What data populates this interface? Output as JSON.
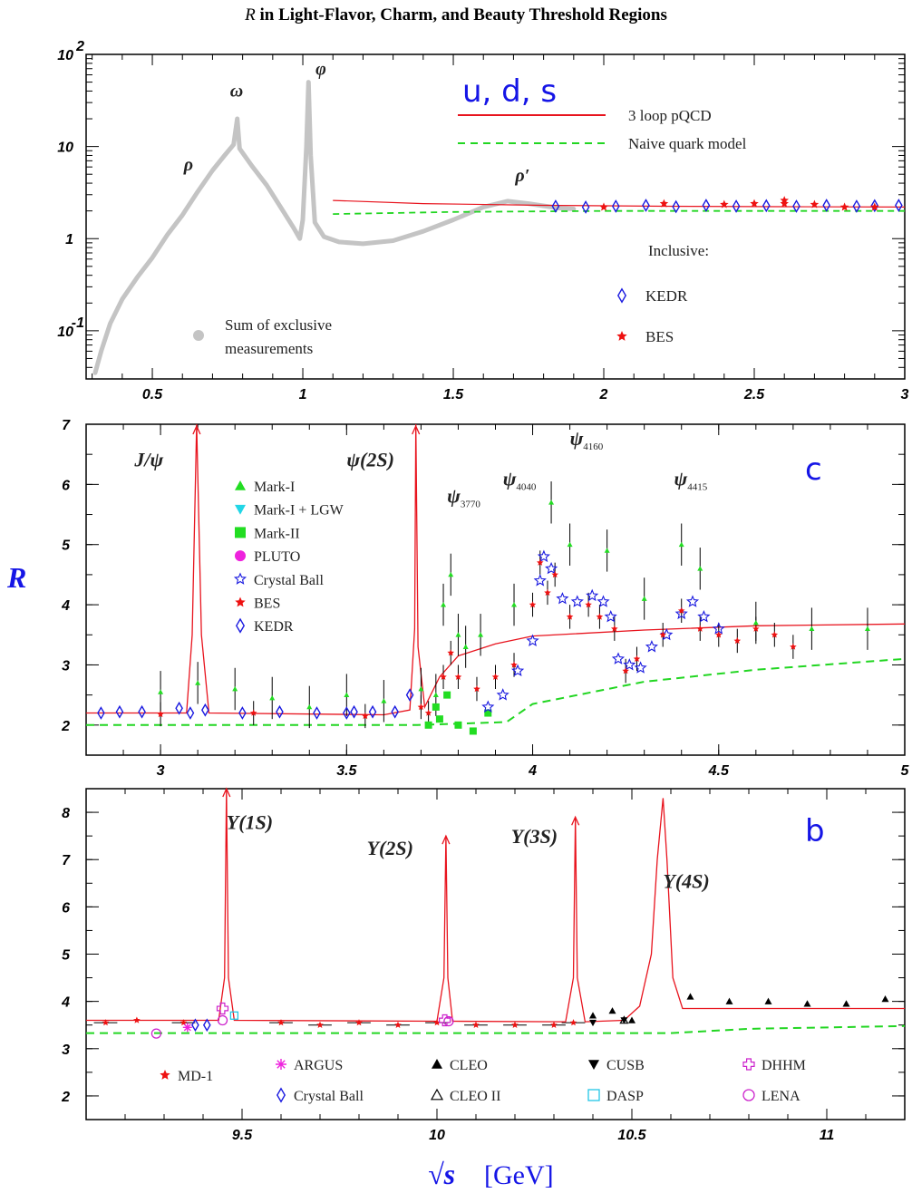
{
  "title_prefix": "R",
  "title_rest": " in Light-Flavor, Charm, and Beauty Threshold Regions",
  "y_axis_label": "R",
  "x_axis_label_sym": "√s",
  "x_axis_label_unit": "[GeV]",
  "colors": {
    "theory": "#e8141e",
    "naive": "#22d622",
    "region_label": "#1515e6",
    "exclusive": "#c4c4c4",
    "kedr": "#1a1ae0",
    "bes": "#ee1111"
  },
  "chart_data": [
    {
      "type": "scatter",
      "region_label": "u, d, s",
      "scale": "log",
      "xlim": [
        0.28,
        3.0
      ],
      "ylim": [
        0.03,
        100
      ],
      "x_ticks": [
        "0.5",
        "1",
        "1.5",
        "2",
        "2.5",
        "3"
      ],
      "x_tick_values": [
        0.5,
        1,
        1.5,
        2,
        2.5,
        3
      ],
      "y_ticks": [
        {
          "value": 0.1,
          "base": "10",
          "exp": "-1"
        },
        {
          "value": 1,
          "base": "1",
          "exp": ""
        },
        {
          "value": 10,
          "base": "10",
          "exp": ""
        },
        {
          "value": 100,
          "base": "10",
          "exp": "2"
        }
      ],
      "legend": {
        "theory": "3 loop pQCD",
        "naive": "Naive quark model",
        "inclusive_heading": "Inclusive:",
        "kedr": "KEDR",
        "bes": "BES",
        "exclusive_line1": "Sum of exclusive",
        "exclusive_line2": "measurements"
      },
      "resonances": [
        {
          "label": "ρ",
          "x": 0.62,
          "y": 5.5
        },
        {
          "label": "ω",
          "x": 0.78,
          "y": 35
        },
        {
          "label": "φ",
          "x": 1.06,
          "y": 60
        },
        {
          "label": "ρ′",
          "x": 1.73,
          "y": 4.2
        }
      ],
      "exclusive_curve": [
        [
          0.31,
          0.035
        ],
        [
          0.33,
          0.06
        ],
        [
          0.36,
          0.12
        ],
        [
          0.4,
          0.22
        ],
        [
          0.45,
          0.38
        ],
        [
          0.5,
          0.62
        ],
        [
          0.55,
          1.1
        ],
        [
          0.6,
          1.8
        ],
        [
          0.65,
          3.2
        ],
        [
          0.7,
          5.5
        ],
        [
          0.74,
          8.0
        ],
        [
          0.77,
          10.5
        ],
        [
          0.782,
          20
        ],
        [
          0.79,
          9.5
        ],
        [
          0.83,
          6.2
        ],
        [
          0.88,
          3.8
        ],
        [
          0.93,
          2.1
        ],
        [
          0.97,
          1.3
        ],
        [
          0.99,
          1.0
        ],
        [
          1.0,
          1.6
        ],
        [
          1.012,
          10
        ],
        [
          1.019,
          50
        ],
        [
          1.026,
          8
        ],
        [
          1.04,
          1.5
        ],
        [
          1.07,
          1.05
        ],
        [
          1.12,
          0.92
        ],
        [
          1.2,
          0.88
        ],
        [
          1.3,
          0.95
        ],
        [
          1.4,
          1.2
        ],
        [
          1.5,
          1.6
        ],
        [
          1.6,
          2.2
        ],
        [
          1.68,
          2.55
        ],
        [
          1.75,
          2.4
        ],
        [
          1.85,
          2.15
        ],
        [
          1.9,
          2.1
        ]
      ],
      "pqcd": [
        [
          1.1,
          2.6
        ],
        [
          1.4,
          2.4
        ],
        [
          1.8,
          2.3
        ],
        [
          2.2,
          2.25
        ],
        [
          2.6,
          2.22
        ],
        [
          3.0,
          2.2
        ]
      ],
      "naive": [
        [
          1.1,
          1.85
        ],
        [
          1.5,
          1.95
        ],
        [
          2.0,
          2.0
        ],
        [
          2.5,
          2.0
        ],
        [
          3.0,
          2.0
        ]
      ],
      "kedr_points": [
        [
          1.84,
          2.25
        ],
        [
          1.94,
          2.2
        ],
        [
          2.04,
          2.25
        ],
        [
          2.14,
          2.3
        ],
        [
          2.24,
          2.22
        ],
        [
          2.34,
          2.3
        ],
        [
          2.44,
          2.25
        ],
        [
          2.54,
          2.28
        ],
        [
          2.64,
          2.25
        ],
        [
          2.74,
          2.3
        ],
        [
          2.84,
          2.25
        ],
        [
          2.9,
          2.28
        ],
        [
          2.98,
          2.3
        ]
      ],
      "bes_points": [
        [
          2.0,
          2.2
        ],
        [
          2.2,
          2.4
        ],
        [
          2.4,
          2.35
        ],
        [
          2.5,
          2.4
        ],
        [
          2.6,
          2.6
        ],
        [
          2.6,
          2.4
        ],
        [
          2.7,
          2.35
        ],
        [
          2.8,
          2.2
        ],
        [
          2.9,
          2.2
        ]
      ]
    },
    {
      "type": "scatter",
      "region_label": "c",
      "xlim": [
        2.8,
        5.0
      ],
      "ylim": [
        1.5,
        7.0
      ],
      "x_ticks": [
        "3",
        "3.5",
        "4",
        "4.5",
        "5"
      ],
      "x_tick_values": [
        3,
        3.5,
        4,
        4.5,
        5
      ],
      "y_ticks": [
        "2",
        "3",
        "4",
        "5",
        "6",
        "7"
      ],
      "y_tick_values": [
        2,
        3,
        4,
        5,
        6,
        7
      ],
      "legend": [
        {
          "label": "Mark-I",
          "marker": "triangle-up",
          "color": "#22dd22"
        },
        {
          "label": "Mark-I + LGW",
          "marker": "triangle-down",
          "color": "#22d6e6"
        },
        {
          "label": "Mark-II",
          "marker": "square",
          "color": "#22dd22"
        },
        {
          "label": "PLUTO",
          "marker": "circle",
          "color": "#ee22dd"
        },
        {
          "label": "Crystal Ball",
          "marker": "star-open",
          "color": "#1a1ae0"
        },
        {
          "label": "BES",
          "marker": "star",
          "color": "#ee1111"
        },
        {
          "label": "KEDR",
          "marker": "diamond-open",
          "color": "#1a1ae0"
        }
      ],
      "resonances": [
        {
          "label": "J/ψ",
          "sub": "",
          "x": 2.93,
          "y": 6.3
        },
        {
          "label": "ψ(2S)",
          "sub": "",
          "x": 3.5,
          "y": 6.3
        },
        {
          "label": "ψ",
          "sub": "3770",
          "x": 3.77,
          "y": 5.7
        },
        {
          "label": "ψ",
          "sub": "4040",
          "x": 3.92,
          "y": 5.98
        },
        {
          "label": "ψ",
          "sub": "4160",
          "x": 4.1,
          "y": 6.65
        },
        {
          "label": "ψ",
          "sub": "4415",
          "x": 4.38,
          "y": 5.98
        }
      ],
      "pqcd": [
        [
          2.8,
          2.2
        ],
        [
          3.0,
          2.2
        ],
        [
          3.07,
          2.2
        ],
        [
          3.085,
          3.5
        ],
        [
          3.097,
          7.0
        ],
        [
          3.11,
          3.5
        ],
        [
          3.13,
          2.2
        ],
        [
          3.6,
          2.17
        ],
        [
          3.67,
          2.25
        ],
        [
          3.683,
          3.6
        ],
        [
          3.686,
          7.0
        ],
        [
          3.692,
          3.3
        ],
        [
          3.71,
          2.3
        ],
        [
          3.75,
          2.8
        ],
        [
          3.8,
          3.15
        ],
        [
          3.9,
          3.35
        ],
        [
          4.0,
          3.48
        ],
        [
          4.3,
          3.58
        ],
        [
          4.6,
          3.65
        ],
        [
          5.0,
          3.68
        ]
      ],
      "naive": [
        [
          2.8,
          2.0
        ],
        [
          3.69,
          2.0
        ],
        [
          3.93,
          2.05
        ],
        [
          4.0,
          2.35
        ],
        [
          4.3,
          2.72
        ],
        [
          4.6,
          2.92
        ],
        [
          5.0,
          3.1
        ]
      ],
      "kedr_points": [
        [
          2.84,
          2.2
        ],
        [
          2.89,
          2.22
        ],
        [
          2.95,
          2.22
        ],
        [
          3.05,
          2.28
        ],
        [
          3.08,
          2.2
        ],
        [
          3.12,
          2.25
        ],
        [
          3.22,
          2.2
        ],
        [
          3.32,
          2.22
        ],
        [
          3.42,
          2.2
        ],
        [
          3.5,
          2.2
        ],
        [
          3.52,
          2.22
        ],
        [
          3.57,
          2.22
        ],
        [
          3.63,
          2.22
        ],
        [
          3.67,
          2.5
        ]
      ],
      "bes_points": [
        [
          3.0,
          2.18
        ],
        [
          3.25,
          2.2
        ],
        [
          3.55,
          2.15
        ],
        [
          3.7,
          2.3
        ],
        [
          3.72,
          2.2
        ],
        [
          3.76,
          2.8
        ],
        [
          3.78,
          3.2
        ],
        [
          3.8,
          2.8
        ],
        [
          3.85,
          2.6
        ],
        [
          3.9,
          2.8
        ],
        [
          3.95,
          3.0
        ],
        [
          4.0,
          4.0
        ],
        [
          4.02,
          4.7
        ],
        [
          4.04,
          4.2
        ],
        [
          4.06,
          4.5
        ],
        [
          4.1,
          3.8
        ],
        [
          4.15,
          4.0
        ],
        [
          4.18,
          3.8
        ],
        [
          4.22,
          3.6
        ],
        [
          4.25,
          2.9
        ],
        [
          4.28,
          3.1
        ],
        [
          4.35,
          3.5
        ],
        [
          4.4,
          3.9
        ],
        [
          4.45,
          3.6
        ],
        [
          4.5,
          3.5
        ],
        [
          4.55,
          3.4
        ],
        [
          4.6,
          3.6
        ],
        [
          4.65,
          3.5
        ],
        [
          4.7,
          3.3
        ]
      ],
      "crystal_ball_points": [
        [
          3.88,
          2.3
        ],
        [
          3.92,
          2.5
        ],
        [
          3.96,
          2.9
        ],
        [
          4.0,
          3.4
        ],
        [
          4.02,
          4.4
        ],
        [
          4.03,
          4.8
        ],
        [
          4.05,
          4.6
        ],
        [
          4.08,
          4.1
        ],
        [
          4.12,
          4.05
        ],
        [
          4.16,
          4.15
        ],
        [
          4.19,
          4.05
        ],
        [
          4.21,
          3.8
        ],
        [
          4.23,
          3.1
        ],
        [
          4.26,
          3.0
        ],
        [
          4.29,
          2.95
        ],
        [
          4.32,
          3.3
        ],
        [
          4.36,
          3.5
        ],
        [
          4.4,
          3.85
        ],
        [
          4.43,
          4.05
        ],
        [
          4.46,
          3.8
        ],
        [
          4.5,
          3.6
        ]
      ],
      "mark_points": [
        [
          3.0,
          2.55
        ],
        [
          3.1,
          2.7
        ],
        [
          3.2,
          2.6
        ],
        [
          3.3,
          2.45
        ],
        [
          3.4,
          2.3
        ],
        [
          3.5,
          2.5
        ],
        [
          3.6,
          2.4
        ],
        [
          3.7,
          2.6
        ],
        [
          3.74,
          2.5
        ],
        [
          3.76,
          4.0
        ],
        [
          3.78,
          4.5
        ],
        [
          3.8,
          3.5
        ],
        [
          3.82,
          3.3
        ],
        [
          3.86,
          3.5
        ],
        [
          3.95,
          4.0
        ],
        [
          4.05,
          5.7
        ],
        [
          4.1,
          5.0
        ],
        [
          4.2,
          4.9
        ],
        [
          4.3,
          4.1
        ],
        [
          4.4,
          5.0
        ],
        [
          4.45,
          4.6
        ],
        [
          4.6,
          3.7
        ],
        [
          4.75,
          3.6
        ],
        [
          4.9,
          3.6
        ]
      ],
      "mark_ii_points": [
        [
          3.72,
          2.0
        ],
        [
          3.74,
          2.3
        ],
        [
          3.75,
          2.1
        ],
        [
          3.77,
          2.5
        ],
        [
          3.8,
          2.0
        ],
        [
          3.84,
          1.9
        ],
        [
          3.88,
          2.2
        ]
      ]
    },
    {
      "type": "scatter",
      "region_label": "b",
      "xlim": [
        9.1,
        11.2
      ],
      "ylim": [
        1.5,
        8.5
      ],
      "x_ticks": [
        "9.5",
        "10",
        "10.5",
        "11"
      ],
      "x_tick_values": [
        9.5,
        10,
        10.5,
        11
      ],
      "y_ticks": [
        "2",
        "3",
        "4",
        "5",
        "6",
        "7",
        "8"
      ],
      "y_tick_values": [
        2,
        3,
        4,
        5,
        6,
        7,
        8
      ],
      "legend": [
        {
          "label": "MD-1",
          "marker": "star",
          "color": "#ee1111"
        },
        {
          "label": "ARGUS",
          "marker": "asterisk",
          "color": "#ee22dd"
        },
        {
          "label": "Crystal Ball",
          "marker": "diamond-open",
          "color": "#1a1ae0"
        },
        {
          "label": "CLEO",
          "marker": "triangle-up",
          "color": "#000000"
        },
        {
          "label": "CLEO II",
          "marker": "triangle-up-open",
          "color": "#000000"
        },
        {
          "label": "CUSB",
          "marker": "triangle-down",
          "color": "#000000"
        },
        {
          "label": "DASP",
          "marker": "square-open",
          "color": "#22c6e6"
        },
        {
          "label": "DHHM",
          "marker": "cross-open",
          "color": "#cc22cc"
        },
        {
          "label": "LENA",
          "marker": "circle-open",
          "color": "#cc22cc"
        }
      ],
      "resonances": [
        {
          "label": "Υ(1S)",
          "x": 9.46,
          "y": 7.65
        },
        {
          "label": "Υ(2S)",
          "x": 9.82,
          "y": 7.1
        },
        {
          "label": "Υ(3S)",
          "x": 10.19,
          "y": 7.35
        },
        {
          "label": "Υ(4S)",
          "x": 10.58,
          "y": 6.4
        }
      ],
      "pqcd": [
        [
          9.1,
          3.6
        ],
        [
          9.44,
          3.6
        ],
        [
          9.455,
          4.5
        ],
        [
          9.46,
          8.5
        ],
        [
          9.465,
          4.5
        ],
        [
          9.48,
          3.6
        ],
        [
          10.0,
          3.58
        ],
        [
          10.018,
          4.5
        ],
        [
          10.023,
          7.5
        ],
        [
          10.028,
          4.5
        ],
        [
          10.04,
          3.58
        ],
        [
          10.33,
          3.57
        ],
        [
          10.35,
          4.5
        ],
        [
          10.355,
          7.9
        ],
        [
          10.36,
          4.5
        ],
        [
          10.38,
          3.57
        ],
        [
          10.48,
          3.6
        ],
        [
          10.52,
          3.9
        ],
        [
          10.55,
          5.0
        ],
        [
          10.565,
          7.0
        ],
        [
          10.58,
          8.3
        ],
        [
          10.59,
          7.0
        ],
        [
          10.605,
          4.5
        ],
        [
          10.63,
          3.85
        ],
        [
          11.2,
          3.85
        ]
      ],
      "naive": [
        [
          9.1,
          3.33
        ],
        [
          10.6,
          3.33
        ],
        [
          10.8,
          3.42
        ],
        [
          11.2,
          3.48
        ]
      ],
      "md1_points": [
        [
          9.15,
          3.55
        ],
        [
          9.23,
          3.6
        ],
        [
          9.35,
          3.55
        ],
        [
          9.6,
          3.55
        ],
        [
          9.7,
          3.5
        ],
        [
          9.8,
          3.55
        ],
        [
          9.9,
          3.5
        ],
        [
          10.0,
          3.55
        ],
        [
          10.1,
          3.5
        ],
        [
          10.2,
          3.5
        ],
        [
          10.3,
          3.5
        ],
        [
          10.35,
          3.55
        ]
      ],
      "cleo_points": [
        [
          10.4,
          3.7
        ],
        [
          10.45,
          3.8
        ],
        [
          10.5,
          3.6
        ],
        [
          10.65,
          4.1
        ],
        [
          10.75,
          4.0
        ],
        [
          10.85,
          4.0
        ],
        [
          10.95,
          3.95
        ],
        [
          11.05,
          3.95
        ],
        [
          11.15,
          4.05
        ]
      ],
      "cusb_points": [
        [
          10.4,
          3.55
        ],
        [
          10.48,
          3.6
        ]
      ],
      "lena_points": [
        [
          9.28,
          3.32
        ],
        [
          9.45,
          3.6
        ],
        [
          10.03,
          3.58
        ]
      ],
      "dhhm_points": [
        [
          9.45,
          3.85
        ],
        [
          10.02,
          3.6
        ]
      ],
      "crystal_ball_points": [
        [
          9.38,
          3.5
        ],
        [
          9.41,
          3.5
        ]
      ],
      "argus_points": [
        [
          9.36,
          3.45
        ]
      ],
      "dasp_points": [
        [
          9.48,
          3.7
        ]
      ],
      "cleo2_points": [
        [
          10.48,
          3.6
        ]
      ]
    }
  ]
}
